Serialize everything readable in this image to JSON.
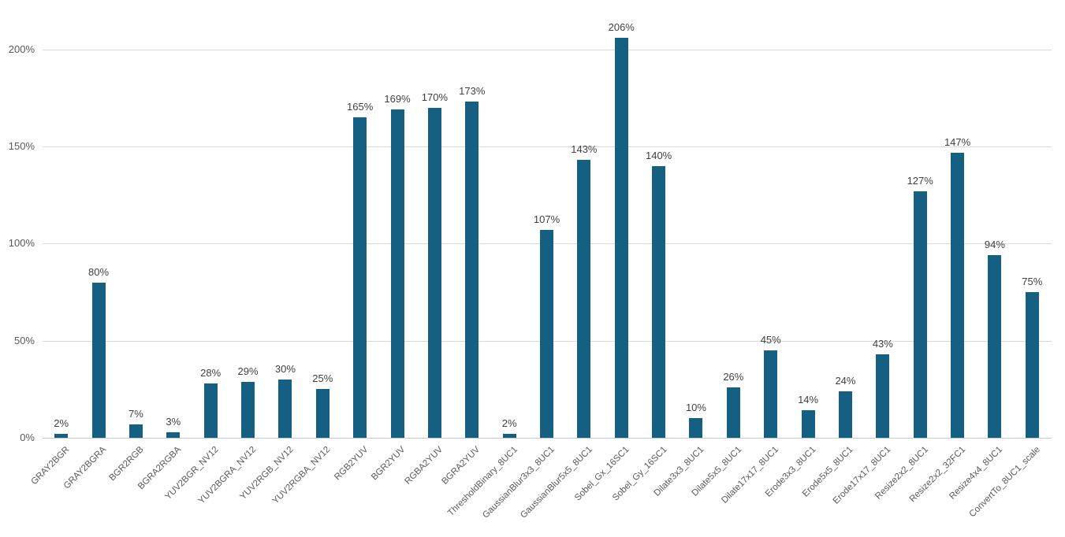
{
  "chart_data": {
    "type": "bar",
    "title": "",
    "xlabel": "",
    "ylabel": "",
    "legend": "none",
    "grid": true,
    "categories": [
      "GRAY2BGR",
      "GRAY2BGRA",
      "BGR2RGB",
      "BGRA2RGBA",
      "YUV2BGR_NV12",
      "YUV2BGRA_NV12",
      "YUV2RGB_NV12",
      "YUV2RGBA_NV12",
      "RGB2YUV",
      "BGR2YUV",
      "RGBA2YUV",
      "BGRA2YUV",
      "ThresholdBinary_8UC1",
      "GaussianBlur3x3_8UC1",
      "GaussianBlur5x5_8UC1",
      "Sobel_Gx_16SC1",
      "Sobel_Gy_16SC1",
      "Dilate3x3_8UC1",
      "Dilate5x5_8UC1",
      "Dilate17x17_8UC1",
      "Erode3x3_8UC1",
      "Erode5x5_8UC1",
      "Erode17x17_8UC1",
      "Resize2x2_8UC1",
      "Resize2x2_32FC1",
      "Resize4x4_8UC1",
      "ConvertTo_8UC1_scale"
    ],
    "values": [
      2,
      80,
      7,
      3,
      28,
      29,
      30,
      25,
      165,
      169,
      170,
      173,
      2,
      107,
      143,
      206,
      140,
      10,
      26,
      45,
      14,
      24,
      43,
      127,
      147,
      94,
      75
    ],
    "data_labels": [
      "2%",
      "80%",
      "7%",
      "3%",
      "28%",
      "29%",
      "30%",
      "25%",
      "165%",
      "169%",
      "170%",
      "173%",
      "2%",
      "107%",
      "143%",
      "206%",
      "140%",
      "10%",
      "26%",
      "45%",
      "14%",
      "24%",
      "43%",
      "127%",
      "147%",
      "94%",
      "75%"
    ],
    "y_ticks": [
      "0%",
      "50%",
      "100%",
      "150%",
      "200%"
    ],
    "y_tick_values": [
      0,
      50,
      100,
      150,
      200
    ],
    "ylim": [
      0,
      217
    ],
    "colors": {
      "bar": "#156082",
      "gridline": "#d9d9d9",
      "axis_line": "#c9c9c9",
      "value_label": "#404040",
      "tick_label": "#595959",
      "background": "#ffffff"
    }
  }
}
